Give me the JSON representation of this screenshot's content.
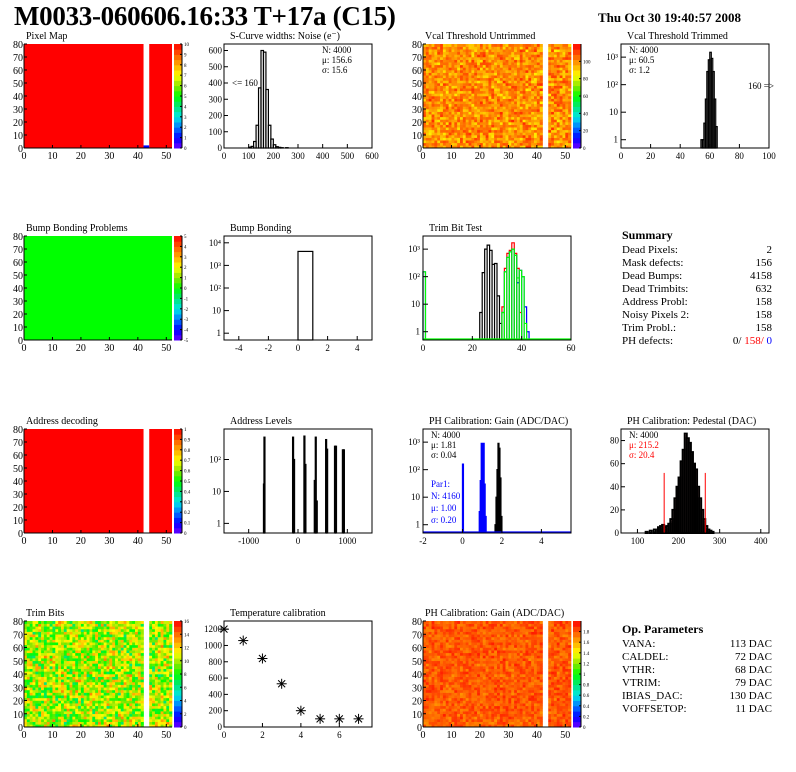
{
  "header": {
    "title": "M0033-060606.16:33 T+17a (C15)",
    "date": "Thu Oct 30 19:40:57 2008"
  },
  "colors": {
    "red": "#ff0000",
    "green": "#00ff00",
    "blue": "#0000ff",
    "black": "#000000"
  },
  "chart_data": [
    {
      "id": "pixel-map",
      "type": "heatmap",
      "title": "Pixel Map",
      "xlim": [
        0,
        52
      ],
      "ylim": [
        0,
        80
      ],
      "xticks": [
        0,
        10,
        20,
        30,
        40,
        50
      ],
      "yticks": [
        0,
        10,
        20,
        30,
        40,
        50,
        60,
        70,
        80
      ],
      "zlim": [
        0,
        10
      ],
      "zticks": [
        0,
        1,
        2,
        3,
        4,
        5,
        6,
        7,
        8,
        9,
        10
      ],
      "fill_value": 10,
      "pattern": "uniform",
      "empty_columns": [
        42,
        43
      ],
      "special_cells": [
        {
          "x": 42,
          "y": 0,
          "value": 1
        }
      ]
    },
    {
      "id": "s-curve-noise",
      "type": "bar",
      "title": "S-Curve widths: Noise (e⁻)",
      "xlim": [
        0,
        600
      ],
      "ylim": [
        0,
        640
      ],
      "xticks": [
        0,
        100,
        200,
        300,
        400,
        500,
        600
      ],
      "yticks": [
        0,
        100,
        200,
        300,
        400,
        500,
        600
      ],
      "bins": [
        [
          100,
          5
        ],
        [
          110,
          10
        ],
        [
          120,
          40
        ],
        [
          130,
          140
        ],
        [
          140,
          370
        ],
        [
          150,
          600
        ],
        [
          160,
          590
        ],
        [
          170,
          360
        ],
        [
          180,
          140
        ],
        [
          190,
          55
        ],
        [
          200,
          20
        ],
        [
          210,
          8
        ],
        [
          220,
          4
        ],
        [
          230,
          2
        ],
        [
          250,
          2
        ]
      ],
      "bin_width": 10,
      "stats": {
        "N": "N: 4000",
        "mu": "μ: 156.6",
        "sigma": "σ: 15.6"
      },
      "annotation": "<= 160"
    },
    {
      "id": "vcal-untrimmed",
      "type": "heatmap",
      "title": "Vcal Threshold Untrimmed",
      "xlim": [
        0,
        52
      ],
      "ylim": [
        0,
        80
      ],
      "xticks": [
        0,
        10,
        20,
        30,
        40,
        50
      ],
      "yticks": [
        0,
        10,
        20,
        30,
        40,
        50,
        60,
        70,
        80
      ],
      "zlim": [
        0,
        120
      ],
      "zticks": [
        0,
        20,
        40,
        60,
        80,
        100
      ],
      "fill_value": 100,
      "pattern": "noisy",
      "noise_range": [
        85,
        115
      ],
      "empty_columns": [
        42,
        43
      ]
    },
    {
      "id": "vcal-trimmed",
      "type": "bar",
      "title": "Vcal Threshold Trimmed",
      "yscale": "log",
      "xlim": [
        0,
        100
      ],
      "ylim": [
        0.5,
        3000
      ],
      "xticks": [
        0,
        20,
        40,
        60,
        80,
        100
      ],
      "yticks": [
        "1",
        "10",
        "10²",
        "10³"
      ],
      "bins": [
        [
          54,
          1
        ],
        [
          55,
          1
        ],
        [
          56,
          4
        ],
        [
          57,
          30
        ],
        [
          58,
          300
        ],
        [
          59,
          800
        ],
        [
          60,
          1500
        ],
        [
          61,
          900
        ],
        [
          62,
          300
        ],
        [
          63,
          30
        ],
        [
          64,
          3
        ]
      ],
      "bin_width": 1,
      "stats": {
        "N": "N: 4000",
        "mu": "μ: 60.5",
        "sigma": "σ:  1.2"
      },
      "annotation": "160 =>"
    },
    {
      "id": "bump-bonding-problems",
      "type": "heatmap",
      "title": "Bump Bonding Problems",
      "xlim": [
        0,
        52
      ],
      "ylim": [
        0,
        80
      ],
      "xticks": [
        0,
        10,
        20,
        30,
        40,
        50
      ],
      "yticks": [
        0,
        10,
        20,
        30,
        40,
        50,
        60,
        70,
        80
      ],
      "zlim": [
        -5,
        5
      ],
      "zticks": [
        -5,
        -4,
        -3,
        -2,
        -1,
        0,
        1,
        2,
        3,
        4,
        5
      ],
      "fill_value": 0,
      "pattern": "uniform",
      "empty_columns": []
    },
    {
      "id": "bump-bonding",
      "type": "bar",
      "title": "Bump Bonding",
      "yscale": "log",
      "xlim": [
        -5,
        5
      ],
      "ylim": [
        0.5,
        20000
      ],
      "xticks": [
        -4,
        -2,
        0,
        2,
        4
      ],
      "yticks": [
        "1",
        "10",
        "10²",
        "10³",
        "10⁴"
      ],
      "bins": [
        [
          0,
          4158
        ]
      ],
      "bin_width": 1
    },
    {
      "id": "trim-bit-test",
      "type": "bar",
      "title": "Trim Bit Test",
      "yscale": "log",
      "xlim": [
        0,
        60
      ],
      "ylim": [
        0.5,
        3000
      ],
      "xticks": [
        0,
        20,
        40,
        60
      ],
      "yticks": [
        "1",
        "10",
        "10²",
        "10³"
      ],
      "bin_width": 1,
      "series": [
        {
          "name": "trim-black",
          "color": "#000000",
          "bins": [
            [
              23,
              5
            ],
            [
              24,
              140
            ],
            [
              25,
              1000
            ],
            [
              26,
              1400
            ],
            [
              27,
              900
            ],
            [
              28,
              280
            ],
            [
              29,
              300
            ],
            [
              30,
              20
            ],
            [
              31,
              2
            ]
          ]
        },
        {
          "name": "trim-red",
          "color": "#ff0000",
          "bins": [
            [
              32,
              8
            ],
            [
              33,
              200
            ],
            [
              34,
              700
            ],
            [
              35,
              900
            ],
            [
              36,
              1700
            ],
            [
              37,
              700
            ],
            [
              38,
              200
            ],
            [
              39,
              5
            ]
          ]
        },
        {
          "name": "trim-blue",
          "color": "#0000ff",
          "bins": [
            [
              0,
              150
            ],
            [
              32,
              5
            ],
            [
              33,
              150
            ],
            [
              34,
              500
            ],
            [
              35,
              800
            ],
            [
              36,
              1000
            ],
            [
              37,
              600
            ],
            [
              38,
              60
            ],
            [
              39,
              170
            ],
            [
              40,
              100
            ],
            [
              41,
              8
            ],
            [
              42,
              1
            ]
          ]
        },
        {
          "name": "trim-green",
          "color": "#00ff00",
          "bins": [
            [
              0,
              150
            ],
            [
              32,
              5
            ],
            [
              33,
              150
            ],
            [
              34,
              500
            ],
            [
              35,
              800
            ],
            [
              36,
              1000
            ],
            [
              37,
              600
            ],
            [
              38,
              90
            ],
            [
              39,
              170
            ],
            [
              40,
              100
            ],
            [
              41,
              2
            ]
          ]
        }
      ]
    },
    {
      "id": "address-decoding",
      "type": "heatmap",
      "title": "Address decoding",
      "xlim": [
        0,
        52
      ],
      "ylim": [
        0,
        80
      ],
      "xticks": [
        0,
        10,
        20,
        30,
        40,
        50
      ],
      "yticks": [
        0,
        10,
        20,
        30,
        40,
        50,
        60,
        70,
        80
      ],
      "zlim": [
        0,
        1
      ],
      "zticks": [
        0,
        0.1,
        0.2,
        0.3,
        0.4,
        0.5,
        0.6,
        0.7,
        0.8,
        0.9,
        1
      ],
      "fill_value": 1,
      "pattern": "uniform",
      "empty_columns": [
        42,
        43
      ]
    },
    {
      "id": "address-levels",
      "type": "bar",
      "title": "Address Levels",
      "yscale": "log",
      "xlim": [
        -1500,
        1500
      ],
      "ylim": [
        0.5,
        900
      ],
      "xticks": [
        -1000,
        0,
        1000
      ],
      "yticks": [
        "1",
        "10",
        "10²"
      ],
      "bin_width": 16,
      "bins": [
        [
          -700,
          17
        ],
        [
          -690,
          500
        ],
        [
          -110,
          500
        ],
        [
          -90,
          100
        ],
        [
          120,
          540
        ],
        [
          140,
          70
        ],
        [
          330,
          22
        ],
        [
          350,
          500
        ],
        [
          370,
          5
        ],
        [
          560,
          420
        ],
        [
          580,
          210
        ],
        [
          740,
          260
        ],
        [
          760,
          260
        ],
        [
          900,
          200
        ],
        [
          920,
          200
        ]
      ]
    },
    {
      "id": "ph-gain-hist",
      "type": "bar",
      "title": "PH Calibration: Gain (ADC/DAC)",
      "yscale": "log",
      "xlim": [
        -2,
        5.5
      ],
      "ylim": [
        0.5,
        3000
      ],
      "xticks": [
        -2,
        0,
        2,
        4
      ],
      "yticks": [
        "1",
        "10",
        "10²",
        "10³"
      ],
      "bin_width": 0.05,
      "series": [
        {
          "name": "gain-black",
          "color": "#000000",
          "bins": [
            [
              1.65,
              1
            ],
            [
              1.7,
              10
            ],
            [
              1.75,
              100
            ],
            [
              1.8,
              900
            ],
            [
              1.85,
              600
            ],
            [
              1.9,
              50
            ],
            [
              1.95,
              2
            ]
          ]
        },
        {
          "name": "gain-blue",
          "color": "#0000ff",
          "bins": [
            [
              0,
              160
            ],
            [
              0.85,
              3
            ],
            [
              0.9,
              40
            ],
            [
              0.95,
              900
            ],
            [
              1.0,
              850
            ],
            [
              1.05,
              900
            ],
            [
              1.1,
              30
            ],
            [
              1.15,
              2
            ]
          ]
        }
      ],
      "stats": {
        "N": "N: 4000",
        "mu": "μ: 1.81",
        "sigma": "σ: 0.04"
      },
      "stats2": {
        "label": "Par1:",
        "N": "N: 4160",
        "mu": "μ: 1.00",
        "sigma": "σ: 0.20"
      }
    },
    {
      "id": "ph-pedestal",
      "type": "bar",
      "title": "PH Calibration: Pedestal (DAC)",
      "xlim": [
        60,
        420
      ],
      "ylim": [
        0,
        90
      ],
      "xticks": [
        100,
        200,
        300,
        400
      ],
      "yticks": [
        0,
        20,
        40,
        60,
        80
      ],
      "bin_width": 5,
      "bins": [
        [
          120,
          1
        ],
        [
          130,
          2
        ],
        [
          140,
          3
        ],
        [
          150,
          5
        ],
        [
          155,
          6
        ],
        [
          160,
          7
        ],
        [
          165,
          5
        ],
        [
          170,
          6
        ],
        [
          175,
          8
        ],
        [
          180,
          12
        ],
        [
          185,
          20
        ],
        [
          190,
          30
        ],
        [
          195,
          40
        ],
        [
          200,
          48
        ],
        [
          205,
          62
        ],
        [
          210,
          72
        ],
        [
          215,
          86
        ],
        [
          220,
          82
        ],
        [
          225,
          78
        ],
        [
          230,
          70
        ],
        [
          235,
          60
        ],
        [
          240,
          55
        ],
        [
          245,
          40
        ],
        [
          250,
          30
        ],
        [
          255,
          20
        ],
        [
          260,
          12
        ],
        [
          265,
          6
        ],
        [
          270,
          3
        ],
        [
          275,
          2
        ],
        [
          280,
          1
        ]
      ],
      "cut_lines": [
        165,
        265
      ],
      "cut_line_height": 52,
      "stats": {
        "N": "N: 4000",
        "mu": "μ: 215.2",
        "sigma": "σ: 20.4"
      }
    },
    {
      "id": "trim-bits",
      "type": "heatmap",
      "title": "Trim Bits",
      "xlim": [
        0,
        52
      ],
      "ylim": [
        0,
        80
      ],
      "xticks": [
        0,
        10,
        20,
        30,
        40,
        50
      ],
      "yticks": [
        0,
        10,
        20,
        30,
        40,
        50,
        60,
        70,
        80
      ],
      "zlim": [
        0,
        16
      ],
      "zticks": [
        0,
        2,
        4,
        6,
        8,
        10,
        12,
        14,
        16
      ],
      "fill_value": 10,
      "pattern": "noisy",
      "noise_range": [
        6,
        14
      ],
      "empty_columns": [
        42,
        43
      ]
    },
    {
      "id": "temperature-calibration",
      "type": "scatter",
      "title": "Temperature calibration",
      "xlim": [
        0,
        7.7
      ],
      "ylim": [
        0,
        1300
      ],
      "xticks": [
        0,
        2,
        4,
        6
      ],
      "yticks": [
        0,
        200,
        400,
        600,
        800,
        1000,
        1200
      ],
      "x": [
        0,
        1,
        2,
        3,
        4,
        5,
        6,
        7
      ],
      "y": [
        1200,
        1060,
        840,
        530,
        200,
        100,
        100,
        100
      ],
      "marker": "asterisk"
    },
    {
      "id": "ph-gain-map",
      "type": "heatmap",
      "title": "PH Calibration: Gain (ADC/DAC)",
      "xlim": [
        0,
        52
      ],
      "ylim": [
        0,
        80
      ],
      "xticks": [
        0,
        10,
        20,
        30,
        40,
        50
      ],
      "yticks": [
        0,
        10,
        20,
        30,
        40,
        50,
        60,
        70,
        80
      ],
      "zlim": [
        0,
        2
      ],
      "zticks": [
        0,
        0.2,
        0.4,
        0.6,
        0.8,
        1,
        1.2,
        1.4,
        1.6,
        1.8
      ],
      "fill_value": 1.8,
      "pattern": "noisy",
      "noise_range": [
        1.65,
        1.95
      ],
      "empty_columns": [
        42,
        43
      ]
    }
  ],
  "summary": {
    "title": "Summary",
    "rows": [
      {
        "label": "Dead Pixels:",
        "value": "2"
      },
      {
        "label": "Mask defects:",
        "value": "156"
      },
      {
        "label": "Dead Bumps:",
        "value": "4158"
      },
      {
        "label": "Dead Trimbits:",
        "value": "632"
      },
      {
        "label": "Address Probl:",
        "value": "158"
      },
      {
        "label": "Noisy Pixels 2:",
        "value": "158"
      },
      {
        "label": "Trim Probl.:",
        "value": "158"
      }
    ],
    "ph_defects": {
      "label": "PH defects:",
      "v1": "0/",
      "v2": "158/",
      "v3": "0"
    }
  },
  "op_parameters": {
    "title": "Op. Parameters",
    "rows": [
      {
        "label": "VANA:",
        "value": "113 DAC"
      },
      {
        "label": "CALDEL:",
        "value": "72 DAC"
      },
      {
        "label": "VTHR:",
        "value": "68 DAC"
      },
      {
        "label": "VTRIM:",
        "value": "79 DAC"
      },
      {
        "label": "IBIAS_DAC:",
        "value": "130 DAC"
      },
      {
        "label": "VOFFSETOP:",
        "value": "11 DAC"
      }
    ]
  }
}
